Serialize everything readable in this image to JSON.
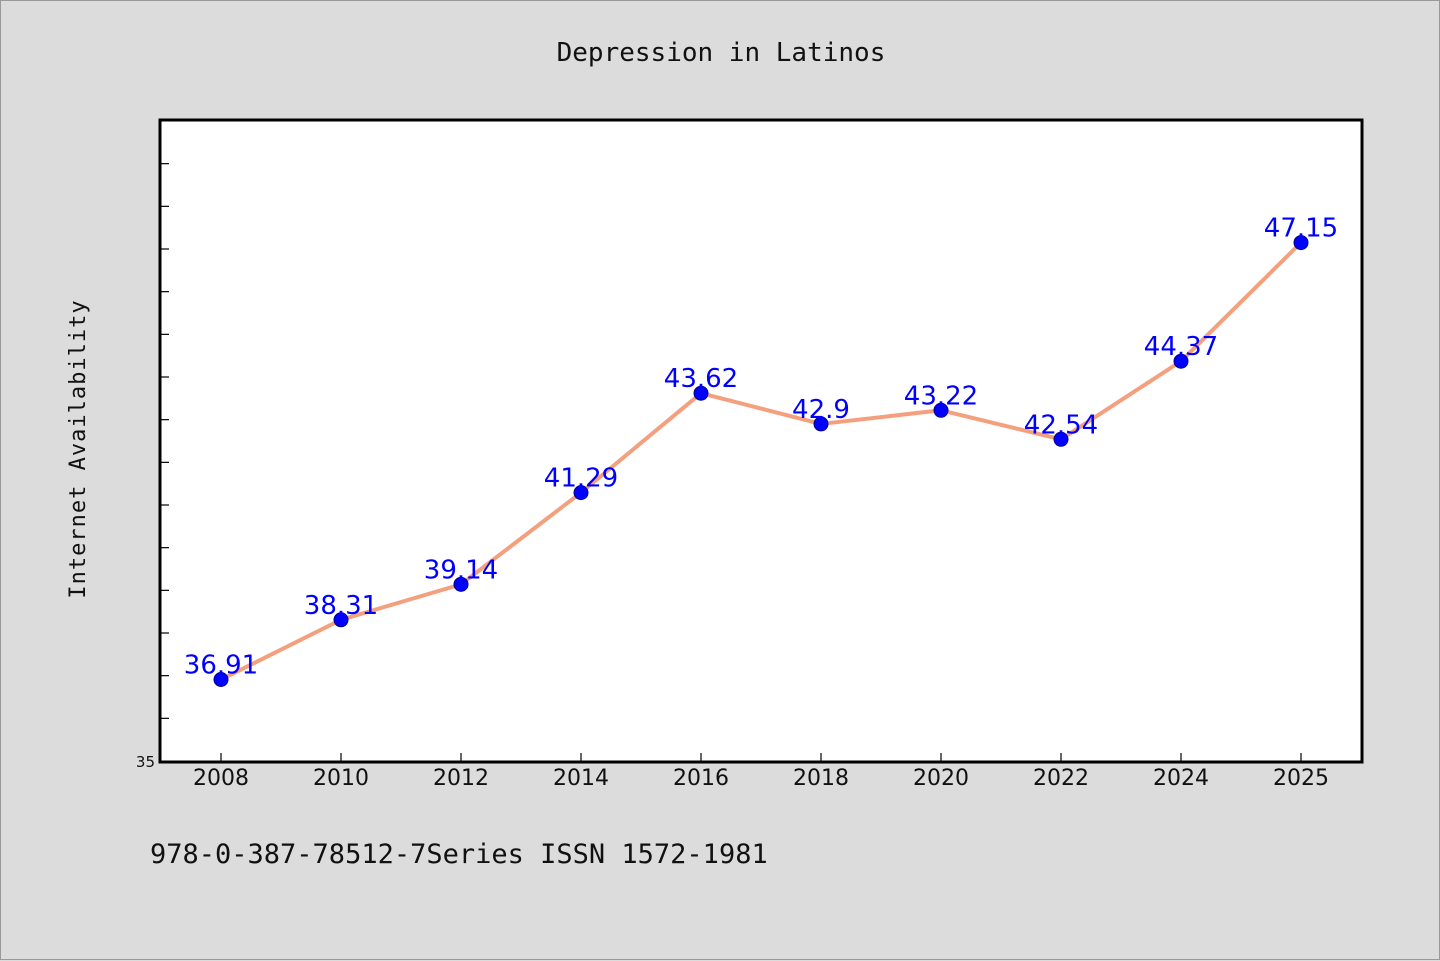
{
  "chart_data": {
    "type": "line",
    "title": "Depression in Latinos",
    "ylabel": "Internet Availability",
    "xlabel": "",
    "x": [
      "2008",
      "2010",
      "2012",
      "2014",
      "2016",
      "2018",
      "2020",
      "2022",
      "2024",
      "2025"
    ],
    "series": [
      {
        "values": [
          36.91,
          38.31,
          39.14,
          41.29,
          43.62,
          42.9,
          43.22,
          42.54,
          44.37,
          47.15
        ],
        "data_labels": [
          "36.91",
          "38.31",
          "39.14",
          "41.29",
          "43.62",
          "42.9",
          "43.22",
          "42.54",
          "44.37",
          "47.15"
        ]
      }
    ],
    "ylim": [
      35,
      50
    ],
    "y_tick_labels": [
      "35"
    ],
    "grid": false,
    "legend": "none",
    "colors": {
      "line": "#f4a07f",
      "marker": "#0000ff",
      "marker_edge": "#00008b",
      "label": "#0000ff",
      "background": "#dcdcdc",
      "plot_background": "#ffffff",
      "axes": "#000000"
    }
  },
  "footer": {
    "text": "978-0-387-78512-7Series ISSN 1572-1981"
  }
}
